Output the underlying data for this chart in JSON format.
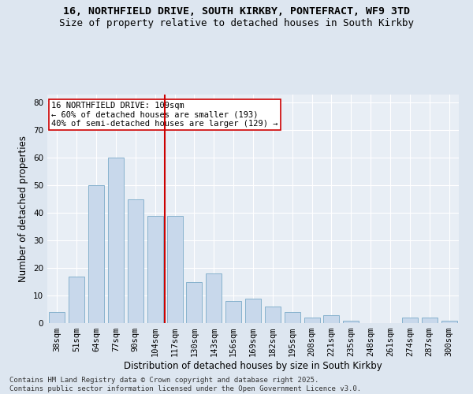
{
  "title1": "16, NORTHFIELD DRIVE, SOUTH KIRKBY, PONTEFRACT, WF9 3TD",
  "title2": "Size of property relative to detached houses in South Kirkby",
  "xlabel": "Distribution of detached houses by size in South Kirkby",
  "ylabel": "Number of detached properties",
  "bar_color": "#c8d8eb",
  "bar_edge_color": "#7aaac8",
  "categories": [
    "38sqm",
    "51sqm",
    "64sqm",
    "77sqm",
    "90sqm",
    "104sqm",
    "117sqm",
    "130sqm",
    "143sqm",
    "156sqm",
    "169sqm",
    "182sqm",
    "195sqm",
    "208sqm",
    "221sqm",
    "235sqm",
    "248sqm",
    "261sqm",
    "274sqm",
    "287sqm",
    "300sqm"
  ],
  "values": [
    4,
    17,
    50,
    60,
    45,
    39,
    39,
    15,
    18,
    8,
    9,
    6,
    4,
    2,
    3,
    1,
    0,
    0,
    2,
    2,
    1
  ],
  "ylim": [
    0,
    83
  ],
  "yticks": [
    0,
    10,
    20,
    30,
    40,
    50,
    60,
    70,
    80
  ],
  "vline_color": "#cc0000",
  "annotation_text": "16 NORTHFIELD DRIVE: 109sqm\n← 60% of detached houses are smaller (193)\n40% of semi-detached houses are larger (129) →",
  "annotation_box_color": "#ffffff",
  "annotation_box_edge_color": "#cc0000",
  "bg_color": "#dde6f0",
  "plot_bg_color": "#e8eef5",
  "grid_color": "#ffffff",
  "footnote": "Contains HM Land Registry data © Crown copyright and database right 2025.\nContains public sector information licensed under the Open Government Licence v3.0.",
  "title_fontsize": 9.5,
  "title2_fontsize": 9,
  "axis_label_fontsize": 8.5,
  "tick_fontsize": 7.5,
  "annotation_fontsize": 7.5,
  "footnote_fontsize": 6.5
}
